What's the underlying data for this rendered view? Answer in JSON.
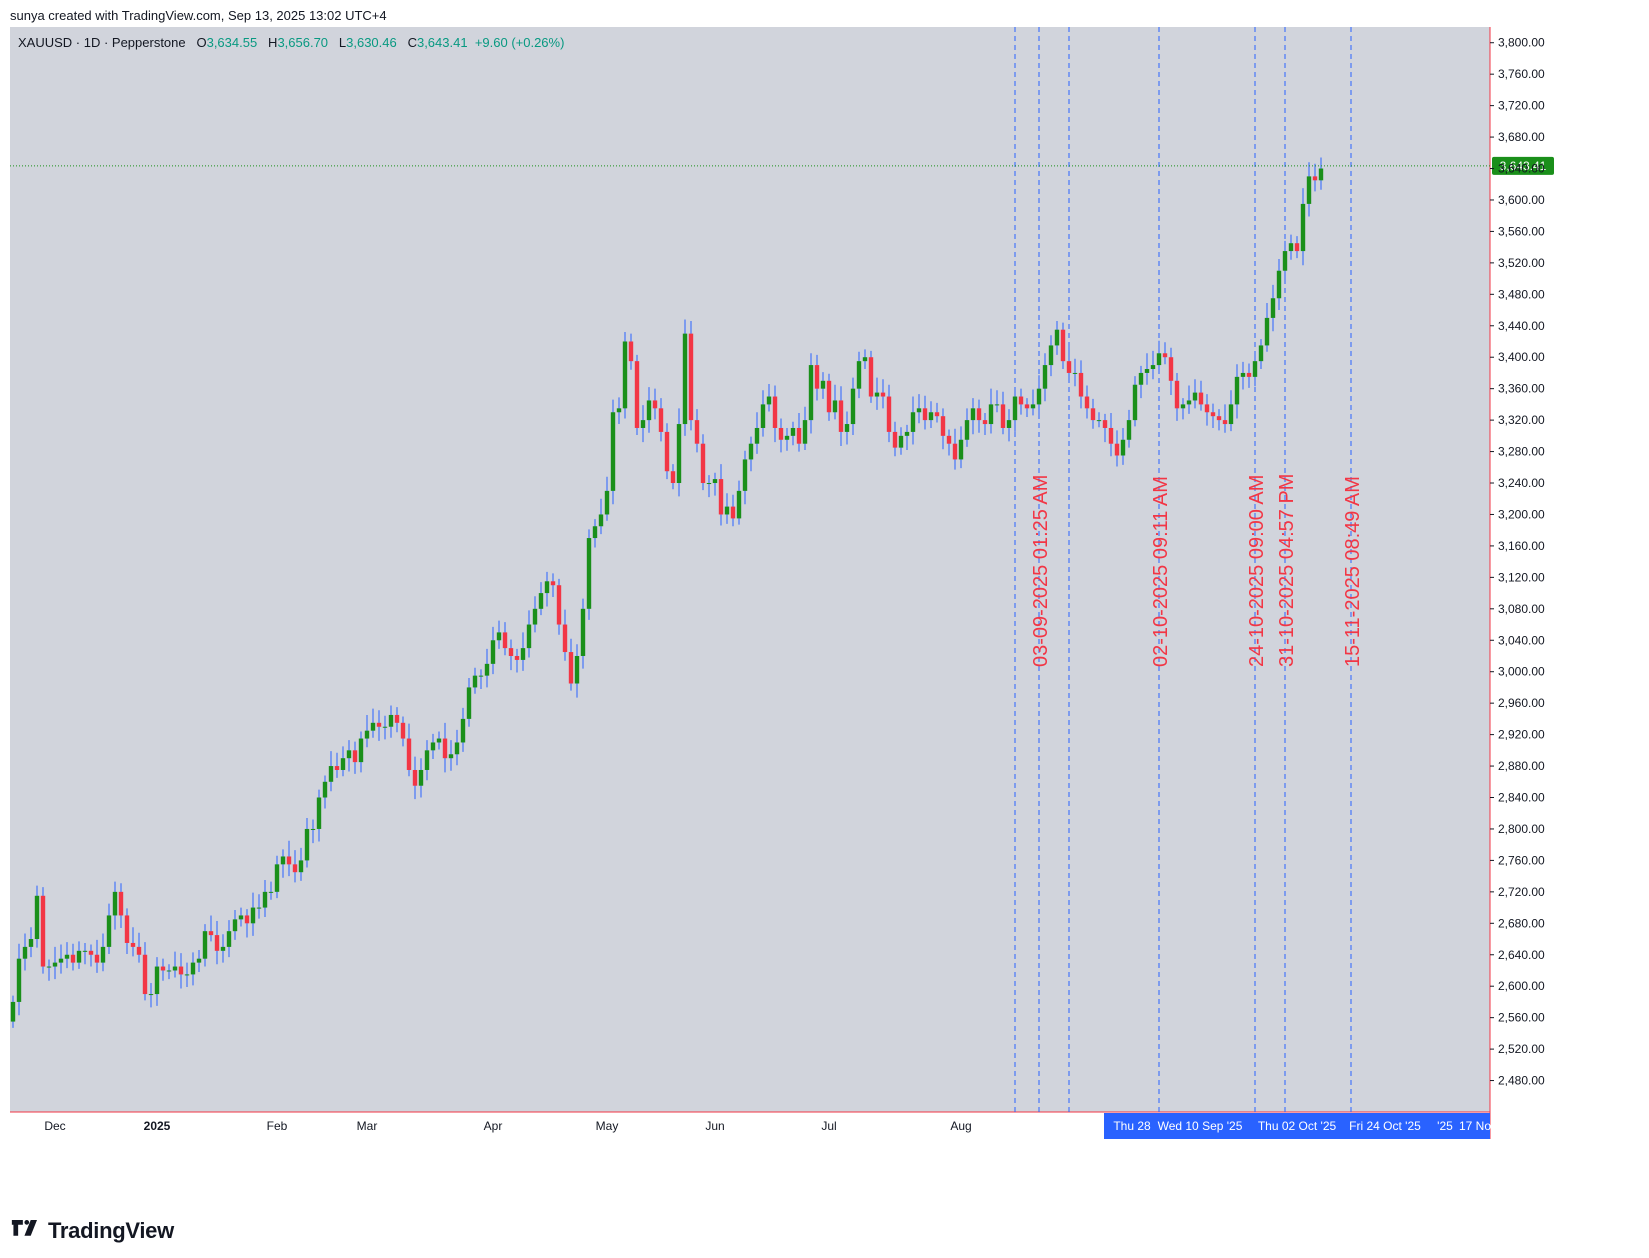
{
  "header_note": "sunya created with TradingView.com, Sep 13, 2025 13:02 UTC+4",
  "legend": {
    "symbol": "XAUUSD · 1D · Pepperstone",
    "open_label": "O",
    "open": "3,634.55",
    "high_label": "H",
    "high": "3,656.70",
    "low_label": "L",
    "low": "3,630.46",
    "close_label": "C",
    "close": "3,643.41",
    "change": "+9.60 (+0.26%)"
  },
  "brand": {
    "name": "TradingView",
    "logo_icon": "tradingview-logo-icon"
  },
  "colors": {
    "up": "#089981",
    "up_fill": "#1a8f1a",
    "down": "#f23645",
    "wick_up": "#2962ff",
    "background": "#d1d4dc",
    "price_label_bg": "#1a8f1a",
    "time_highlight": "#2962ff",
    "vline": "#2962ff",
    "vline_label": "#f23645"
  },
  "chart_data": {
    "type": "candlestick",
    "title": "",
    "xlabel": "",
    "ylabel": "",
    "ylim": [
      2440,
      3820
    ],
    "grid": false,
    "y_ticks": [
      "3,800.00",
      "3,760.00",
      "3,720.00",
      "3,680.00",
      "3,640.00",
      "3,600.00",
      "3,560.00",
      "3,520.00",
      "3,480.00",
      "3,440.00",
      "3,400.00",
      "3,360.00",
      "3,320.00",
      "3,280.00",
      "3,240.00",
      "3,200.00",
      "3,160.00",
      "3,120.00",
      "3,080.00",
      "3,040.00",
      "3,000.00",
      "2,960.00",
      "2,920.00",
      "2,880.00",
      "2,840.00",
      "2,800.00",
      "2,760.00",
      "2,720.00",
      "2,680.00",
      "2,640.00",
      "2,600.00",
      "2,560.00",
      "2,520.00",
      "2,480.00"
    ],
    "x_ticks": [
      {
        "label": "Dec",
        "bar": 7
      },
      {
        "label": "2025",
        "bar": 24
      },
      {
        "label": "Feb",
        "bar": 44
      },
      {
        "label": "Mar",
        "bar": 59
      },
      {
        "label": "Apr",
        "bar": 80
      },
      {
        "label": "May",
        "bar": 99
      },
      {
        "label": "Jun",
        "bar": 117
      },
      {
        "label": "Jul",
        "bar": 136
      },
      {
        "label": "Aug",
        "bar": 158
      }
    ],
    "future_axis_labels": [
      "Thu 28",
      "Wed 10 Sep '25",
      "Thu 02 Oct '25",
      "Fri 24 Oct '25",
      "'25",
      "17 No"
    ],
    "last_price": "3,643.41",
    "last_price_value": 3643.41,
    "vertical_markers": [
      {
        "label": "03-09-2025 01:25 AM",
        "bar": 171
      },
      {
        "label": "02-10-2025 09:11 AM",
        "bar": 191
      },
      {
        "label": "24-10-2025 09:00 AM",
        "bar": 207
      },
      {
        "label": "31-10-2025 04:57 PM",
        "bar": 212
      },
      {
        "label": "15-11-2025 08:49 AM",
        "bar": 223
      }
    ],
    "extra_vlines_bars": [
      167,
      176
    ],
    "closes": [
      2580,
      2635,
      2650,
      2660,
      2715,
      2625,
      2625,
      2630,
      2635,
      2640,
      2630,
      2645,
      2645,
      2640,
      2630,
      2650,
      2690,
      2720,
      2690,
      2655,
      2650,
      2640,
      2590,
      2590,
      2625,
      2620,
      2620,
      2625,
      2615,
      2615,
      2630,
      2635,
      2670,
      2665,
      2645,
      2650,
      2670,
      2685,
      2690,
      2680,
      2700,
      2700,
      2720,
      2720,
      2755,
      2765,
      2755,
      2745,
      2760,
      2800,
      2800,
      2840,
      2860,
      2880,
      2875,
      2890,
      2900,
      2885,
      2915,
      2925,
      2935,
      2930,
      2930,
      2945,
      2935,
      2915,
      2875,
      2855,
      2875,
      2900,
      2910,
      2915,
      2890,
      2895,
      2910,
      2940,
      2980,
      2995,
      2995,
      3010,
      3040,
      3050,
      3030,
      3020,
      3015,
      3030,
      3060,
      3080,
      3100,
      3115,
      3110,
      3060,
      3025,
      2985,
      3020,
      3080,
      3170,
      3185,
      3200,
      3230,
      3330,
      3335,
      3420,
      3395,
      3310,
      3320,
      3345,
      3335,
      3305,
      3255,
      3240,
      3315,
      3430,
      3320,
      3290,
      3240,
      3240,
      3245,
      3200,
      3210,
      3195,
      3230,
      3270,
      3290,
      3310,
      3340,
      3350,
      3310,
      3295,
      3300,
      3310,
      3290,
      3320,
      3390,
      3360,
      3370,
      3330,
      3345,
      3305,
      3315,
      3360,
      3395,
      3400,
      3350,
      3355,
      3350,
      3305,
      3285,
      3300,
      3305,
      3330,
      3335,
      3320,
      3330,
      3325,
      3300,
      3290,
      3270,
      3295,
      3320,
      3335,
      3320,
      3315,
      3340,
      3340,
      3310,
      3320,
      3350,
      3340,
      3335,
      3340,
      3360,
      3390,
      3415,
      3435,
      3395,
      3380,
      3380,
      3350,
      3335,
      3320,
      3320,
      3310,
      3290,
      3275,
      3295,
      3320,
      3365,
      3380,
      3385,
      3390,
      3405,
      3400,
      3370,
      3335,
      3340,
      3345,
      3355,
      3340,
      3330,
      3325,
      3320,
      3315,
      3340,
      3375,
      3380,
      3375,
      3395,
      3415,
      3450,
      3475,
      3510,
      3535,
      3545,
      3535,
      3595,
      3630,
      3625,
      3640
    ]
  }
}
